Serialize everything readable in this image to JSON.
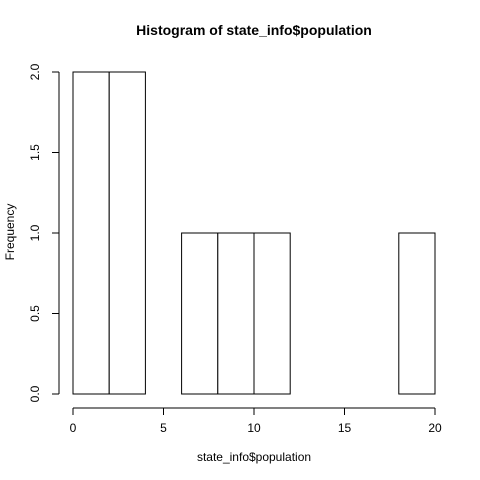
{
  "chart_data": {
    "type": "bar",
    "title": "Histogram of state_info$population",
    "xlabel": "state_info$population",
    "ylabel": "Frequency",
    "bins": [
      {
        "start": 0,
        "end": 2,
        "count": 2
      },
      {
        "start": 2,
        "end": 4,
        "count": 2
      },
      {
        "start": 4,
        "end": 6,
        "count": 0
      },
      {
        "start": 6,
        "end": 8,
        "count": 1
      },
      {
        "start": 8,
        "end": 10,
        "count": 1
      },
      {
        "start": 10,
        "end": 12,
        "count": 1
      },
      {
        "start": 12,
        "end": 14,
        "count": 0
      },
      {
        "start": 14,
        "end": 16,
        "count": 0
      },
      {
        "start": 16,
        "end": 18,
        "count": 0
      },
      {
        "start": 18,
        "end": 20,
        "count": 1
      }
    ],
    "xlim": [
      0,
      20
    ],
    "ylim": [
      0,
      2
    ],
    "xticks": [
      "0",
      "5",
      "10",
      "15",
      "20"
    ],
    "yticks": [
      "0.0",
      "0.5",
      "1.0",
      "1.5",
      "2.0"
    ],
    "grid": false
  }
}
